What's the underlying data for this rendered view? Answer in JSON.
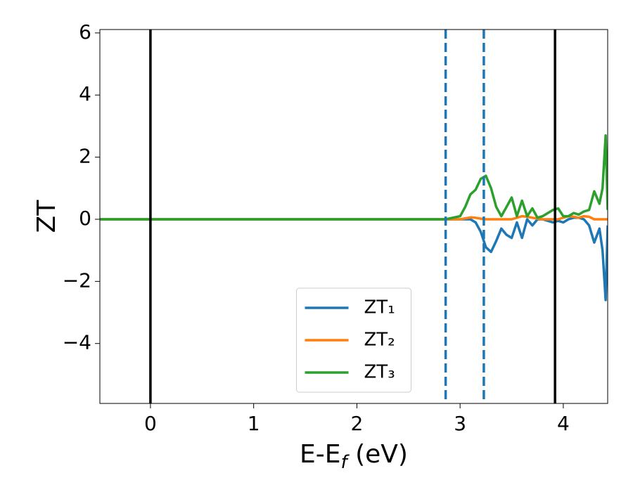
{
  "chart_data": {
    "type": "line",
    "xlabel": [
      "E-E",
      "f",
      " (eV)"
    ],
    "ylabel": "ZT",
    "xlim": [
      -0.49,
      4.43
    ],
    "ylim": [
      -5.93,
      6.11
    ],
    "xticks": [
      0,
      1,
      2,
      3,
      4
    ],
    "yticks": [
      {
        "value": -4,
        "label": "−4"
      },
      {
        "value": -2,
        "label": "−2"
      },
      0,
      2,
      4,
      6
    ],
    "legend": "lower center",
    "vlines": [
      {
        "x": 0,
        "color": "#000000",
        "style": "solid"
      },
      {
        "x": 3.92,
        "color": "#000000",
        "style": "solid"
      },
      {
        "x": 2.86,
        "color": "#1f77b4",
        "style": "dashed"
      },
      {
        "x": 3.23,
        "color": "#1f77b4",
        "style": "dashed"
      }
    ],
    "x": [
      -0.49,
      0,
      1,
      2,
      2.86,
      3.0,
      3.05,
      3.1,
      3.15,
      3.2,
      3.25,
      3.3,
      3.35,
      3.4,
      3.45,
      3.5,
      3.55,
      3.6,
      3.65,
      3.7,
      3.75,
      3.8,
      3.85,
      3.9,
      3.95,
      4.0,
      4.05,
      4.1,
      4.15,
      4.2,
      4.25,
      4.3,
      4.35,
      4.38,
      4.41,
      4.43
    ],
    "series": [
      {
        "name": "ZT₁",
        "color": "#1f77b4",
        "values": [
          0,
          0,
          0,
          0,
          0,
          0,
          0,
          0,
          -0.1,
          -0.4,
          -0.9,
          -1.05,
          -0.7,
          -0.3,
          -0.5,
          -0.6,
          -0.1,
          -0.6,
          0,
          -0.2,
          0,
          0,
          -0.05,
          -0.1,
          -0.05,
          -0.1,
          0,
          0.05,
          0.05,
          0,
          -0.2,
          -0.75,
          -0.3,
          -1.0,
          -2.6,
          -0.2
        ]
      },
      {
        "name": "ZT₂",
        "color": "#ff7f0e",
        "values": [
          0,
          0,
          0,
          0,
          0,
          0,
          0.03,
          0.06,
          0.05,
          0.02,
          0,
          0,
          0,
          0,
          0,
          0,
          0.05,
          0.1,
          0.08,
          0.05,
          0.02,
          0,
          0,
          0,
          0,
          0.05,
          0.1,
          0.08,
          0.05,
          0.1,
          0.08,
          0,
          0,
          0,
          0,
          0
        ]
      },
      {
        "name": "ZT₃",
        "color": "#2ca02c",
        "values": [
          0,
          0,
          0,
          0,
          0,
          0.1,
          0.4,
          0.8,
          0.95,
          1.3,
          1.4,
          1.0,
          0.4,
          0.1,
          0.4,
          0.7,
          0.1,
          0.6,
          0.1,
          0.35,
          0.05,
          0.1,
          0.2,
          0.3,
          0.35,
          0.1,
          0.1,
          0.2,
          0.15,
          0.25,
          0.3,
          0.9,
          0.5,
          1.0,
          2.7,
          0.3
        ]
      }
    ]
  }
}
